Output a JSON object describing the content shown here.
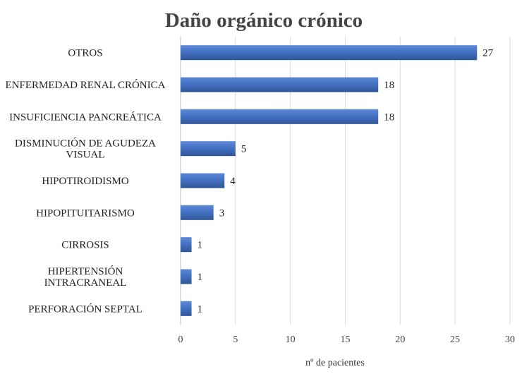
{
  "chart_data": {
    "type": "bar",
    "orientation": "horizontal",
    "title": "Daño orgánico crónico",
    "xlabel": "nº de pacientes",
    "ylabel": "",
    "categories": [
      [
        "OTROS"
      ],
      [
        "ENFERMEDAD RENAL CRÓNICA"
      ],
      [
        "INSUFICIENCIA PANCREÁTICA"
      ],
      [
        "DISMINUCIÓN DE AGUDEZA",
        "VISUAL"
      ],
      [
        "HIPOTIROIDISMO"
      ],
      [
        "HIPOPITUITARISMO"
      ],
      [
        "CIRROSIS"
      ],
      [
        "HIPERTENSIÓN",
        "INTRACRANEAL"
      ],
      [
        "PERFORACIÓN SEPTAL"
      ]
    ],
    "values": [
      27,
      18,
      18,
      5,
      4,
      3,
      1,
      1,
      1
    ],
    "xlim": [
      0,
      30
    ],
    "xticks": [
      0,
      5,
      10,
      15,
      20,
      25,
      30
    ],
    "grid": "vertical",
    "legend": "none",
    "colors": {
      "bar": "#4472c4",
      "bar_light": "#5b87d6",
      "bar_dark": "#2f5597",
      "grid": "#d9d9d9"
    }
  }
}
